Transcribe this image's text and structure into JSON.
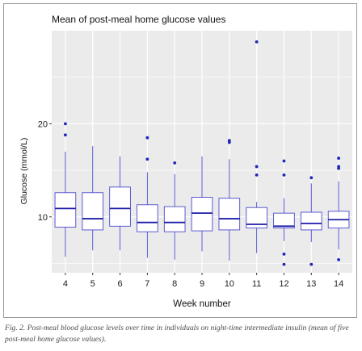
{
  "caption": "Fig. 2. Post-meal blood glucose levels over time in individuals on night-time intermediate insulin (mean of five post-meal home glucose values).",
  "chart_data": {
    "type": "box",
    "title": "Mean of post-meal home glucose values",
    "xlabel": "Week number",
    "ylabel": "Glucose (mmol/L)",
    "categories": [
      "4",
      "5",
      "6",
      "7",
      "8",
      "9",
      "10",
      "11",
      "12",
      "13",
      "14"
    ],
    "y_ticks": [
      10,
      20
    ],
    "ylim": [
      4.0,
      30.0
    ],
    "grid": true,
    "colors": {
      "box": "#4a4ad0",
      "median": "#1c1ca8",
      "outlier": "#2424b8",
      "panel": "#ebebeb",
      "grid": "#ffffff"
    },
    "boxes": [
      {
        "week": "4",
        "min": 5.7,
        "q1": 8.9,
        "median": 10.9,
        "q3": 12.6,
        "max": 17.0,
        "outliers": [
          18.8,
          20.0
        ]
      },
      {
        "week": "5",
        "min": 6.4,
        "q1": 8.6,
        "median": 9.8,
        "q3": 12.6,
        "max": 17.6,
        "outliers": []
      },
      {
        "week": "6",
        "min": 6.4,
        "q1": 9.0,
        "median": 10.9,
        "q3": 13.2,
        "max": 16.5,
        "outliers": []
      },
      {
        "week": "7",
        "min": 5.6,
        "q1": 8.4,
        "median": 9.4,
        "q3": 11.3,
        "max": 14.8,
        "outliers": [
          16.2,
          18.5
        ]
      },
      {
        "week": "8",
        "min": 5.4,
        "q1": 8.4,
        "median": 9.4,
        "q3": 11.1,
        "max": 14.6,
        "outliers": [
          15.8
        ]
      },
      {
        "week": "9",
        "min": 6.3,
        "q1": 8.5,
        "median": 10.4,
        "q3": 12.1,
        "max": 16.5,
        "outliers": []
      },
      {
        "week": "10",
        "min": 5.3,
        "q1": 8.6,
        "median": 9.8,
        "q3": 12.0,
        "max": 16.2,
        "outliers": [
          18.0,
          18.2
        ]
      },
      {
        "week": "11",
        "min": 6.1,
        "q1": 8.8,
        "median": 9.2,
        "q3": 11.0,
        "max": 11.6,
        "outliers": [
          14.5,
          15.4,
          28.8
        ]
      },
      {
        "week": "12",
        "min": 7.4,
        "q1": 8.8,
        "median": 9.0,
        "q3": 10.4,
        "max": 12.0,
        "outliers": [
          4.9,
          6.0,
          14.5,
          16.0
        ]
      },
      {
        "week": "13",
        "min": 7.3,
        "q1": 8.6,
        "median": 9.3,
        "q3": 10.5,
        "max": 13.6,
        "outliers": [
          4.9,
          14.2
        ]
      },
      {
        "week": "14",
        "min": 6.5,
        "q1": 8.8,
        "median": 9.7,
        "q3": 10.6,
        "max": 13.8,
        "outliers": [
          5.4,
          15.2,
          15.4,
          16.3
        ]
      }
    ]
  }
}
